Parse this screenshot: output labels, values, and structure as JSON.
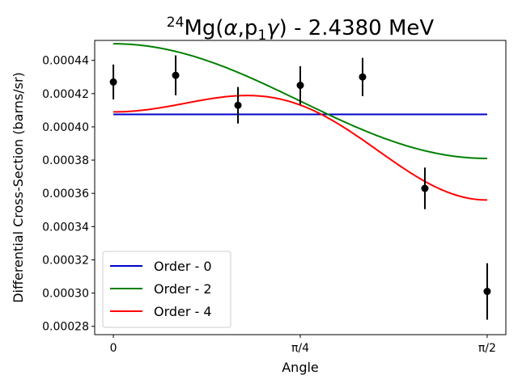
{
  "chart_data": {
    "type": "line",
    "title": {
      "mass_number": "24",
      "element": "Mg",
      "reaction_open": "(",
      "projectile": "α",
      "comma": ",p",
      "particle_index": "1",
      "gamma": "γ",
      "reaction_close": ")",
      "energy": " - 2.4380 MeV"
    },
    "xlabel": "Angle",
    "ylabel": "Differential Cross-Section (barns/sr)",
    "xlim": [
      -0.0785,
      1.6493
    ],
    "ylim": [
      0.000275,
      0.000452
    ],
    "xticks": [
      {
        "value": 0,
        "label": "0"
      },
      {
        "value": 0.7854,
        "label": "π/4"
      },
      {
        "value": 1.5708,
        "label": "π/2"
      }
    ],
    "yticks": [
      {
        "value": 0.00028,
        "label": "0.00028"
      },
      {
        "value": 0.0003,
        "label": "0.00030"
      },
      {
        "value": 0.00032,
        "label": "0.00032"
      },
      {
        "value": 0.00034,
        "label": "0.00034"
      },
      {
        "value": 0.00036,
        "label": "0.00036"
      },
      {
        "value": 0.00038,
        "label": "0.00038"
      },
      {
        "value": 0.0004,
        "label": "0.00040"
      },
      {
        "value": 0.00042,
        "label": "0.00042"
      },
      {
        "value": 0.00044,
        "label": "0.00044"
      }
    ],
    "data_points": [
      {
        "x": 0.0,
        "y": 0.000427,
        "err": 1.05e-05
      },
      {
        "x": 0.2618,
        "y": 0.000431,
        "err": 1.2e-05
      },
      {
        "x": 0.5236,
        "y": 0.000413,
        "err": 1.1e-05
      },
      {
        "x": 0.7854,
        "y": 0.000425,
        "err": 1.15e-05
      },
      {
        "x": 1.0472,
        "y": 0.00043,
        "err": 1.15e-05
      },
      {
        "x": 1.309,
        "y": 0.000363,
        "err": 1.25e-05
      },
      {
        "x": 1.5708,
        "y": 0.000301,
        "err": 1.7e-05
      }
    ],
    "series": [
      {
        "name": "Order - 0",
        "color": "#0000cc",
        "coefficients": [
          0.0004075
        ]
      },
      {
        "name": "Order - 2",
        "color": "#008000",
        "coefficients": [
          0.000404,
          4.6e-05
        ]
      },
      {
        "name": "Order - 4",
        "color": "#ff0000",
        "coefficients": [
          0.00039,
          4.7e-05,
          -2.8e-05
        ]
      }
    ],
    "legend_position": "lower-left",
    "grid": false
  }
}
